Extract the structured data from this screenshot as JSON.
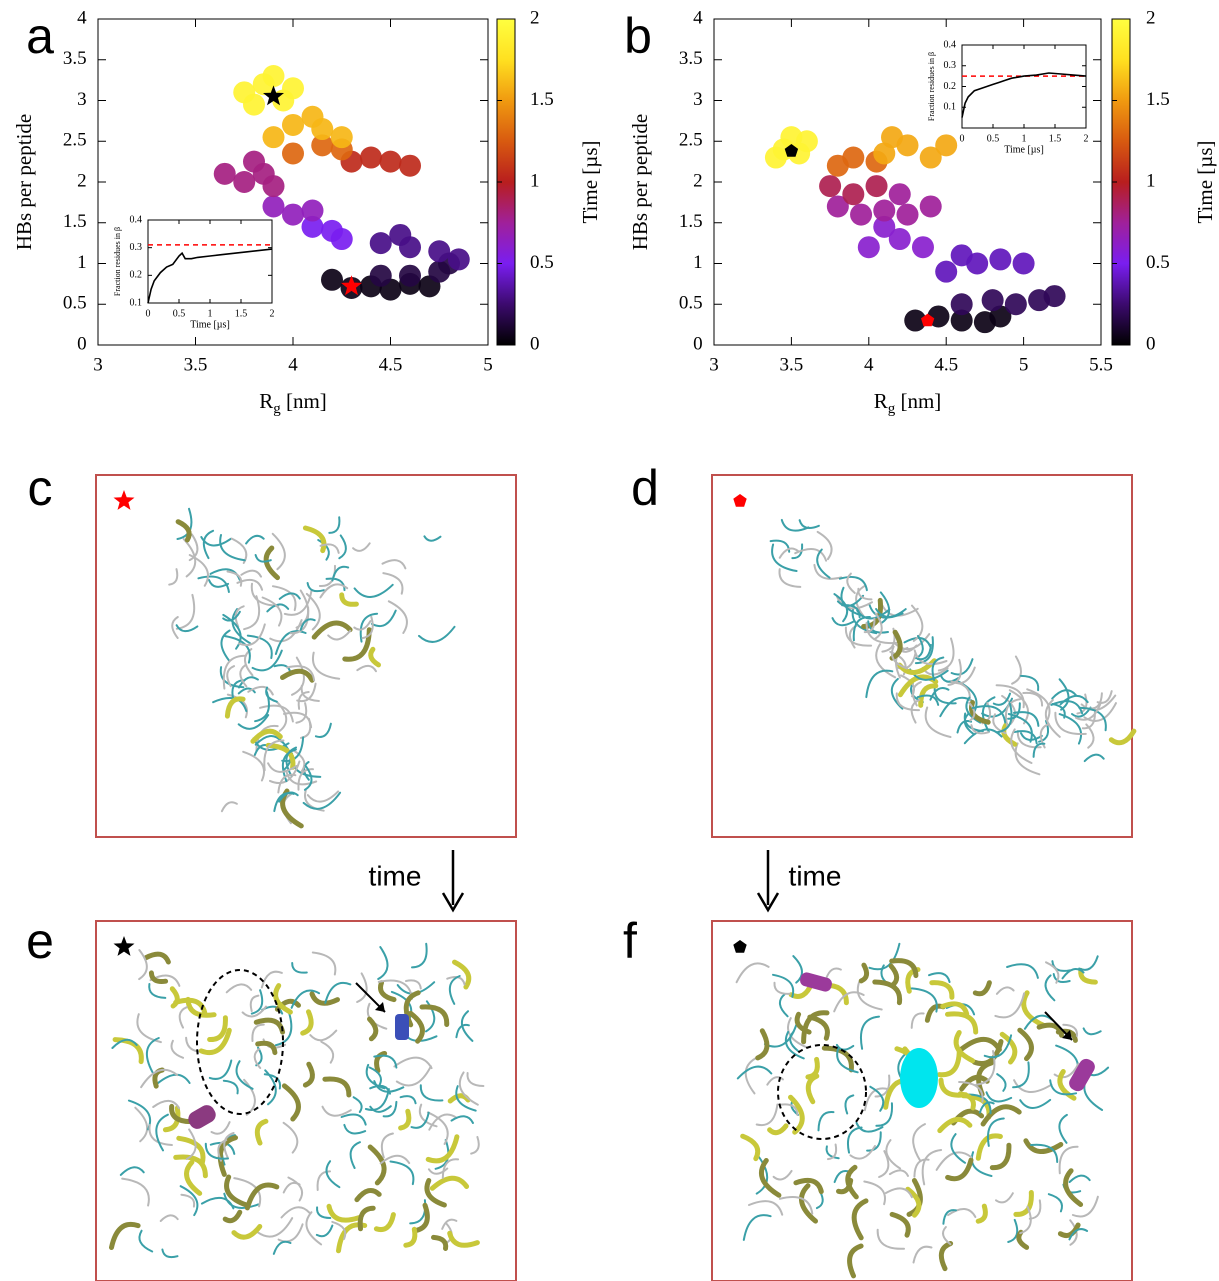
{
  "chart_data": [
    {
      "type": "scatter",
      "panel_label": "a",
      "xlabel": "R",
      "xlabel_sub": "g",
      "xlabel_unit": " [nm]",
      "ylabel": "HBs per peptide",
      "xlim": [
        3,
        5
      ],
      "xticks": [
        3,
        3.5,
        4,
        4.5,
        5
      ],
      "ylim": [
        0,
        4
      ],
      "yticks": [
        0,
        0.5,
        1,
        1.5,
        2,
        2.5,
        3,
        3.5,
        4
      ],
      "colorbar_label": "Time [µs]",
      "clim": [
        0,
        2
      ],
      "cticks": [
        0,
        0.5,
        1,
        1.5,
        2
      ],
      "colormap": [
        "#000000",
        "#3c0a6e",
        "#7a1ef0",
        "#a0209a",
        "#b81e1e",
        "#d85a10",
        "#f09a10",
        "#ffe020",
        "#ffff40"
      ],
      "x": [
        4.2,
        4.3,
        4.4,
        4.5,
        4.6,
        4.7,
        4.45,
        4.6,
        4.75,
        4.8,
        4.45,
        4.6,
        4.75,
        4.85,
        4.55,
        4.1,
        4.2,
        4.25,
        3.9,
        4.0,
        4.1,
        3.65,
        3.75,
        3.85,
        3.9,
        3.8,
        4.3,
        4.4,
        4.5,
        4.6,
        4.0,
        4.15,
        4.25,
        3.9,
        4.0,
        4.15,
        4.25,
        4.1,
        3.75,
        3.85,
        3.95,
        3.8,
        3.9,
        4.0
      ],
      "values": [
        0.8,
        0.7,
        0.72,
        0.68,
        0.75,
        0.72,
        0.85,
        0.85,
        0.9,
        1.0,
        1.25,
        1.2,
        1.15,
        1.05,
        1.35,
        1.45,
        1.4,
        1.3,
        1.7,
        1.6,
        1.65,
        2.1,
        2.0,
        2.1,
        1.95,
        2.25,
        2.25,
        2.3,
        2.25,
        2.2,
        2.35,
        2.45,
        2.4,
        2.55,
        2.7,
        2.65,
        2.55,
        2.8,
        3.1,
        3.2,
        3.0,
        2.95,
        3.3,
        3.15
      ],
      "time": [
        0.05,
        0.05,
        0.05,
        0.05,
        0.05,
        0.05,
        0.15,
        0.15,
        0.15,
        0.15,
        0.3,
        0.3,
        0.3,
        0.3,
        0.3,
        0.5,
        0.5,
        0.5,
        0.65,
        0.65,
        0.65,
        0.8,
        0.8,
        0.8,
        0.8,
        0.8,
        1.05,
        1.05,
        1.05,
        1.05,
        1.3,
        1.3,
        1.3,
        1.6,
        1.6,
        1.6,
        1.6,
        1.6,
        1.9,
        1.9,
        1.9,
        1.9,
        1.9,
        1.9
      ],
      "markers": [
        {
          "x": 3.9,
          "y": 3.05,
          "shape": "star",
          "color": "#000000"
        },
        {
          "x": 4.3,
          "y": 0.72,
          "shape": "star",
          "color": "#ff0000"
        }
      ]
    },
    {
      "type": "scatter",
      "panel_label": "b",
      "xlabel": "R",
      "xlabel_sub": "g",
      "xlabel_unit": " [nm]",
      "ylabel": "HBs per peptide",
      "xlim": [
        3,
        5.5
      ],
      "xticks": [
        3,
        3.5,
        4,
        4.5,
        5,
        5.5
      ],
      "ylim": [
        0,
        4
      ],
      "yticks": [
        0,
        0.5,
        1,
        1.5,
        2,
        2.5,
        3,
        3.5,
        4
      ],
      "colorbar_label": "Time [µs]",
      "clim": [
        0,
        2
      ],
      "cticks": [
        0,
        0.5,
        1,
        1.5,
        2
      ],
      "colormap": [
        "#000000",
        "#3c0a6e",
        "#7a1ef0",
        "#a0209a",
        "#b81e1e",
        "#d85a10",
        "#f09a10",
        "#ffe020",
        "#ffff40"
      ],
      "x": [
        4.3,
        4.45,
        4.6,
        4.75,
        4.85,
        4.6,
        4.8,
        4.95,
        5.1,
        5.2,
        4.5,
        4.7,
        4.85,
        5.0,
        4.6,
        4.0,
        4.2,
        4.35,
        4.1,
        3.8,
        3.95,
        4.1,
        4.25,
        4.2,
        4.4,
        3.75,
        3.9,
        4.05,
        3.8,
        3.9,
        4.05,
        4.1,
        4.25,
        4.4,
        4.5,
        4.15,
        3.45,
        3.55,
        3.6,
        3.5,
        3.4
      ],
      "values": [
        0.3,
        0.35,
        0.3,
        0.28,
        0.35,
        0.5,
        0.55,
        0.5,
        0.55,
        0.6,
        0.9,
        1.0,
        1.05,
        1.0,
        1.1,
        1.2,
        1.3,
        1.2,
        1.45,
        1.7,
        1.6,
        1.65,
        1.6,
        1.85,
        1.7,
        1.95,
        1.85,
        1.95,
        2.2,
        2.3,
        2.25,
        2.35,
        2.45,
        2.3,
        2.45,
        2.55,
        2.4,
        2.35,
        2.5,
        2.55,
        2.3
      ],
      "time": [
        0.05,
        0.05,
        0.05,
        0.05,
        0.05,
        0.2,
        0.2,
        0.2,
        0.2,
        0.2,
        0.4,
        0.4,
        0.4,
        0.4,
        0.4,
        0.6,
        0.6,
        0.6,
        0.6,
        0.75,
        0.75,
        0.75,
        0.75,
        0.75,
        0.75,
        0.9,
        0.9,
        0.9,
        1.3,
        1.3,
        1.3,
        1.55,
        1.55,
        1.55,
        1.55,
        1.55,
        1.9,
        1.9,
        1.9,
        1.9,
        1.9
      ],
      "markers": [
        {
          "x": 3.5,
          "y": 2.38,
          "shape": "pentagon",
          "color": "#000000"
        },
        {
          "x": 4.38,
          "y": 0.3,
          "shape": "pentagon",
          "color": "#ff0000"
        }
      ]
    },
    {
      "type": "line",
      "xlabel": "Time [µs]",
      "ylabel": "Fraction residues in β",
      "xlim": [
        0,
        2
      ],
      "xticks": [
        0,
        0.5,
        1,
        1.5,
        2
      ],
      "ylim": [
        0.1,
        0.4
      ],
      "yticks": [
        0.1,
        0.2,
        0.3,
        0.4
      ],
      "reference": 0.31,
      "color": "#000000",
      "reference_color": "#ff0000",
      "x": [
        0,
        0.05,
        0.1,
        0.2,
        0.3,
        0.4,
        0.5,
        0.55,
        0.6,
        0.7,
        0.8,
        1,
        1.2,
        1.4,
        1.6,
        1.8,
        2
      ],
      "values": [
        0.1,
        0.15,
        0.18,
        0.21,
        0.23,
        0.24,
        0.27,
        0.28,
        0.26,
        0.26,
        0.265,
        0.27,
        0.275,
        0.28,
        0.285,
        0.29,
        0.295
      ]
    },
    {
      "type": "line",
      "xlabel": "Time [µs]",
      "ylabel": "Fraction residues in β",
      "xlim": [
        0,
        2
      ],
      "xticks": [
        0,
        0.5,
        1,
        1.5,
        2
      ],
      "ylim": [
        0,
        0.4
      ],
      "yticks": [
        0.1,
        0.2,
        0.3,
        0.4
      ],
      "reference": 0.25,
      "color": "#000000",
      "reference_color": "#ff0000",
      "x": [
        0,
        0.05,
        0.1,
        0.2,
        0.3,
        0.4,
        0.5,
        0.6,
        0.7,
        0.8,
        0.9,
        1,
        1.2,
        1.4,
        1.6,
        1.8,
        2
      ],
      "values": [
        0.05,
        0.12,
        0.15,
        0.18,
        0.19,
        0.2,
        0.21,
        0.22,
        0.23,
        0.24,
        0.245,
        0.25,
        0.255,
        0.265,
        0.26,
        0.255,
        0.25
      ]
    }
  ],
  "panels": [
    {
      "label": "c",
      "marker": {
        "shape": "star",
        "color": "#ff0000"
      }
    },
    {
      "label": "d",
      "marker": {
        "shape": "pentagon",
        "color": "#ff0000"
      }
    },
    {
      "label": "e",
      "marker": {
        "shape": "star",
        "color": "#000000"
      }
    },
    {
      "label": "f",
      "marker": {
        "shape": "pentagon",
        "color": "#000000"
      }
    }
  ],
  "arrows": [
    {
      "label": "time"
    },
    {
      "label": "time"
    }
  ]
}
